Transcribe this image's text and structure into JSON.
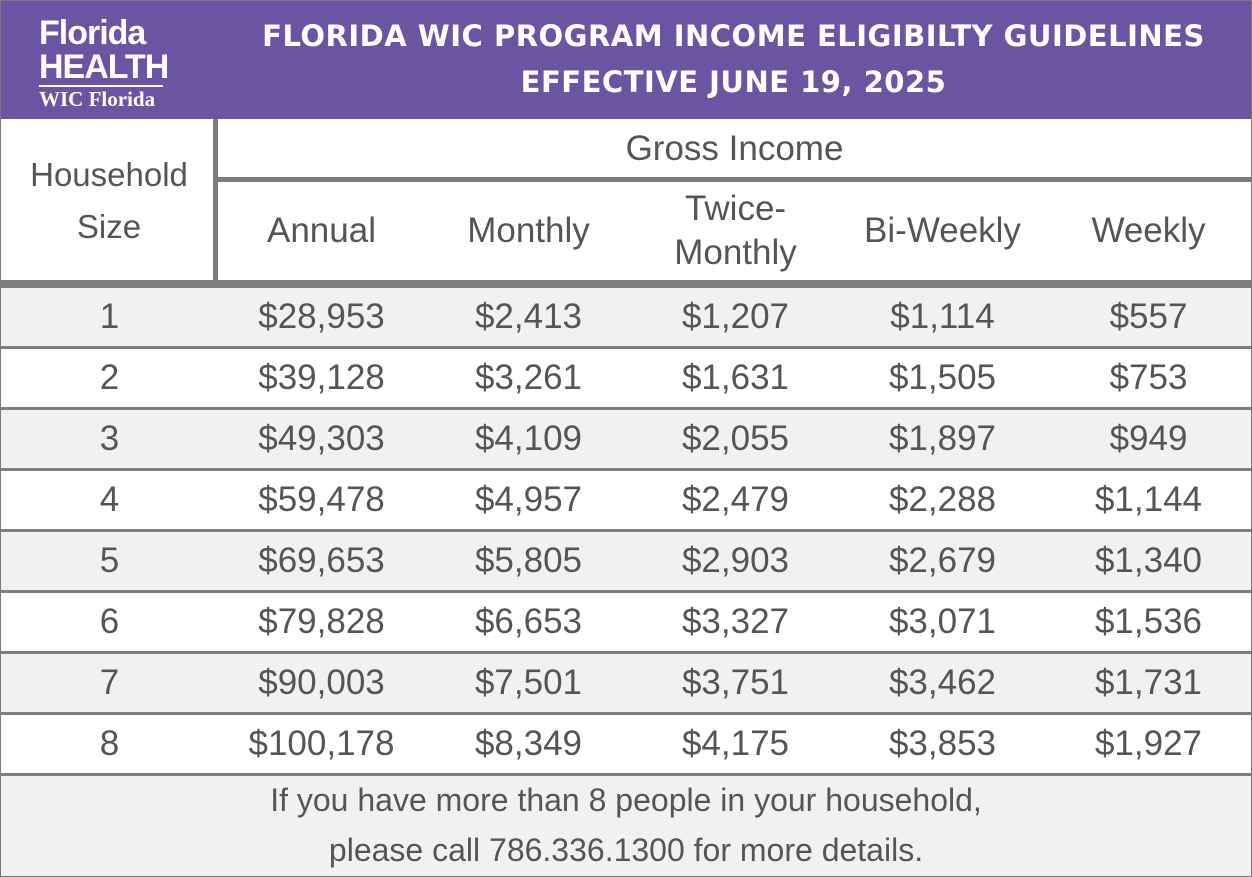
{
  "logo": {
    "line1": "Florida",
    "line2": "HEALTH",
    "line3": "WIC Florida"
  },
  "title": {
    "line1": "FLORIDA WIC PROGRAM INCOME ELIGIBILTY GUIDELINES",
    "line2": "EFFECTIVE JUNE 19, 2025"
  },
  "table": {
    "household_size_header": [
      "Household",
      "Size"
    ],
    "gross_income_header": "Gross Income",
    "columns": [
      {
        "label": [
          "Annual"
        ]
      },
      {
        "label": [
          "Monthly"
        ]
      },
      {
        "label": [
          "Twice-",
          "Monthly"
        ]
      },
      {
        "label": [
          "Bi-Weekly"
        ]
      },
      {
        "label": [
          "Weekly"
        ]
      }
    ],
    "rows": [
      [
        "1",
        "$28,953",
        "$2,413",
        "$1,207",
        "$1,114",
        "$557"
      ],
      [
        "2",
        "$39,128",
        "$3,261",
        "$1,631",
        "$1,505",
        "$753"
      ],
      [
        "3",
        "$49,303",
        "$4,109",
        "$2,055",
        "$1,897",
        "$949"
      ],
      [
        "4",
        "$59,478",
        "$4,957",
        "$2,479",
        "$2,288",
        "$1,144"
      ],
      [
        "5",
        "$69,653",
        "$5,805",
        "$2,903",
        "$2,679",
        "$1,340"
      ],
      [
        "6",
        "$79,828",
        "$6,653",
        "$3,327",
        "$3,071",
        "$1,536"
      ],
      [
        "7",
        "$90,003",
        "$7,501",
        "$3,751",
        "$3,462",
        "$1,731"
      ],
      [
        "8",
        "$100,178",
        "$8,349",
        "$4,175",
        "$3,853",
        "$1,927"
      ]
    ]
  },
  "footer": {
    "line1": "If you have more than 8 people in your household,",
    "line2": "please call 786.336.1300 for more details."
  },
  "colors": {
    "header_bg": "#6b54a2",
    "shaded_row": "#f1f1f1",
    "rule": "#7d7d7d",
    "text": "#555555"
  }
}
